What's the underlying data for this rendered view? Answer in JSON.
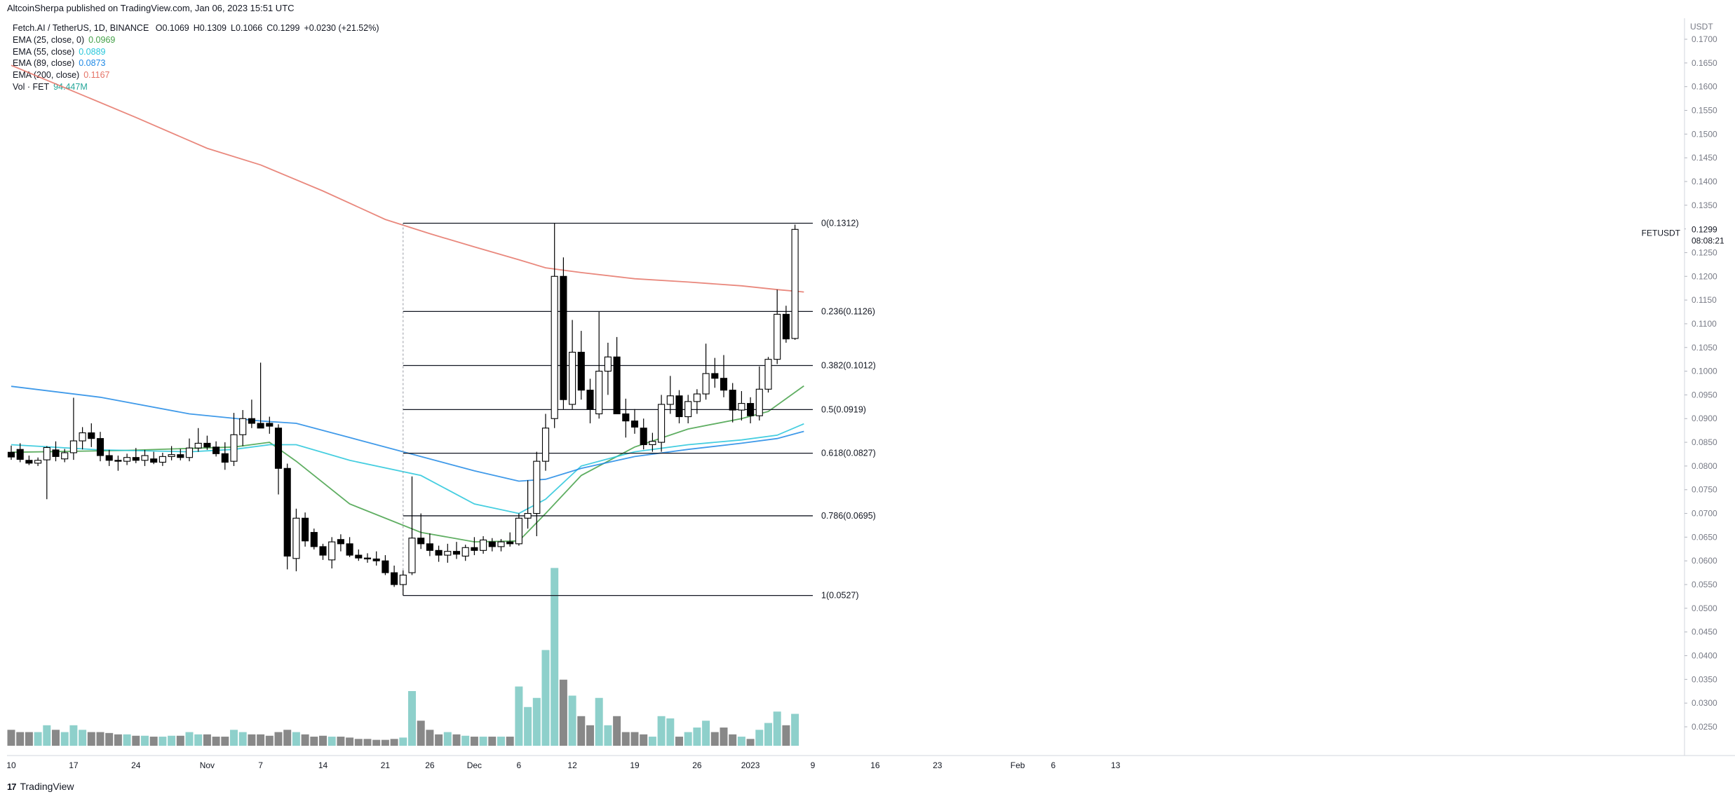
{
  "publisher": "AltcoinSherpa published on TradingView.com, Jan 06, 2023 15:51 UTC",
  "footer": {
    "logo": "TradingView"
  },
  "legend": {
    "symbol": "Fetch.AI / TetherUS, 1D, BINANCE",
    "open": "O0.1069",
    "high": "H0.1309",
    "low": "L0.1066",
    "close": "C0.1299",
    "change": "+0.0230 (+21.52%)",
    "indicators": [
      {
        "label": "EMA (25, close, 0)",
        "value": "0.0969",
        "color": "#43a047"
      },
      {
        "label": "EMA (55, close)",
        "value": "0.0889",
        "color": "#26c6da"
      },
      {
        "label": "EMA (89, close)",
        "value": "0.0873",
        "color": "#1e88e5"
      },
      {
        "label": "EMA (200, close)",
        "value": "0.1167",
        "color": "#e57366"
      },
      {
        "label": "Vol · FET",
        "value": "94.447M",
        "color": "#26a69a"
      }
    ]
  },
  "price_axis": {
    "unit": "USDT",
    "ticks": [
      0.17,
      0.165,
      0.16,
      0.155,
      0.15,
      0.145,
      0.14,
      0.135,
      0.13,
      0.125,
      0.12,
      0.115,
      0.11,
      0.105,
      0.1,
      0.095,
      0.09,
      0.085,
      0.08,
      0.075,
      0.07,
      0.065,
      0.06,
      0.055,
      0.05,
      0.045,
      0.04,
      0.035,
      0.03,
      0.025
    ],
    "tick_labels": [
      "0.1700",
      "0.1650",
      "0.1600",
      "0.1550",
      "0.1500",
      "0.1450",
      "0.1400",
      "0.1350",
      "0.1300",
      "0.1250",
      "0.1200",
      "0.1150",
      "0.1100",
      "0.1050",
      "0.1000",
      "0.0950",
      "0.0900",
      "0.0850",
      "0.0800",
      "0.0750",
      "0.0700",
      "0.0650",
      "0.0600",
      "0.0550",
      "0.0500",
      "0.0450",
      "0.0400",
      "0.0350",
      "0.0300",
      "0.0250"
    ],
    "current_price": "0.1299",
    "countdown": "08:08:21",
    "symbol_tag": "FETUSDT",
    "range": [
      0.021,
      0.1715
    ]
  },
  "time_axis": {
    "labels": [
      {
        "text": "10",
        "day": 0
      },
      {
        "text": "17",
        "day": 7
      },
      {
        "text": "24",
        "day": 14
      },
      {
        "text": "Nov",
        "day": 22
      },
      {
        "text": "7",
        "day": 28
      },
      {
        "text": "14",
        "day": 35
      },
      {
        "text": "21",
        "day": 42
      },
      {
        "text": "26",
        "day": 47
      },
      {
        "text": "Dec",
        "day": 52
      },
      {
        "text": "6",
        "day": 57
      },
      {
        "text": "12",
        "day": 63
      },
      {
        "text": "19",
        "day": 70
      },
      {
        "text": "26",
        "day": 77
      },
      {
        "text": "2023",
        "day": 83
      },
      {
        "text": "9",
        "day": 90
      },
      {
        "text": "16",
        "day": 97
      },
      {
        "text": "23",
        "day": 104
      },
      {
        "text": "Feb",
        "day": 113
      },
      {
        "text": "6",
        "day": 117
      },
      {
        "text": "13",
        "day": 124
      }
    ]
  },
  "chart_data": {
    "type": "candlestick",
    "title": "Fetch.AI / TetherUS, 1D, BINANCE",
    "ylim": [
      0.021,
      0.1715
    ],
    "candles": [
      {
        "o": 0.0829,
        "h": 0.0843,
        "l": 0.0813,
        "c": 0.0819
      },
      {
        "o": 0.0835,
        "h": 0.0848,
        "l": 0.0808,
        "c": 0.0814
      },
      {
        "o": 0.0812,
        "h": 0.0822,
        "l": 0.0802,
        "c": 0.0806
      },
      {
        "o": 0.0806,
        "h": 0.0818,
        "l": 0.08,
        "c": 0.0812
      },
      {
        "o": 0.0813,
        "h": 0.0842,
        "l": 0.073,
        "c": 0.0839
      },
      {
        "o": 0.0834,
        "h": 0.0852,
        "l": 0.081,
        "c": 0.082
      },
      {
        "o": 0.0815,
        "h": 0.0836,
        "l": 0.0808,
        "c": 0.0828
      },
      {
        "o": 0.0828,
        "h": 0.0944,
        "l": 0.0813,
        "c": 0.0853
      },
      {
        "o": 0.0853,
        "h": 0.0882,
        "l": 0.0835,
        "c": 0.087
      },
      {
        "o": 0.087,
        "h": 0.089,
        "l": 0.084,
        "c": 0.0858
      },
      {
        "o": 0.0858,
        "h": 0.0872,
        "l": 0.081,
        "c": 0.0822
      },
      {
        "o": 0.0822,
        "h": 0.0834,
        "l": 0.08,
        "c": 0.0812
      },
      {
        "o": 0.0812,
        "h": 0.0822,
        "l": 0.079,
        "c": 0.081
      },
      {
        "o": 0.081,
        "h": 0.0826,
        "l": 0.0802,
        "c": 0.0818
      },
      {
        "o": 0.0818,
        "h": 0.0838,
        "l": 0.0806,
        "c": 0.0812
      },
      {
        "o": 0.0812,
        "h": 0.0834,
        "l": 0.08,
        "c": 0.0822
      },
      {
        "o": 0.0815,
        "h": 0.083,
        "l": 0.0804,
        "c": 0.0808
      },
      {
        "o": 0.0808,
        "h": 0.0828,
        "l": 0.08,
        "c": 0.082
      },
      {
        "o": 0.082,
        "h": 0.0842,
        "l": 0.0812,
        "c": 0.0824
      },
      {
        "o": 0.0824,
        "h": 0.0836,
        "l": 0.0812,
        "c": 0.0818
      },
      {
        "o": 0.0818,
        "h": 0.0858,
        "l": 0.081,
        "c": 0.0838
      },
      {
        "o": 0.0838,
        "h": 0.088,
        "l": 0.083,
        "c": 0.0848
      },
      {
        "o": 0.0848,
        "h": 0.0864,
        "l": 0.0834,
        "c": 0.084
      },
      {
        "o": 0.084,
        "h": 0.0852,
        "l": 0.082,
        "c": 0.0826
      },
      {
        "o": 0.0826,
        "h": 0.085,
        "l": 0.0792,
        "c": 0.0808
      },
      {
        "o": 0.081,
        "h": 0.0912,
        "l": 0.08,
        "c": 0.0866
      },
      {
        "o": 0.0866,
        "h": 0.0918,
        "l": 0.0842,
        "c": 0.09
      },
      {
        "o": 0.09,
        "h": 0.094,
        "l": 0.088,
        "c": 0.089
      },
      {
        "o": 0.089,
        "h": 0.1018,
        "l": 0.088,
        "c": 0.088
      },
      {
        "o": 0.089,
        "h": 0.0904,
        "l": 0.0868,
        "c": 0.0884
      },
      {
        "o": 0.088,
        "h": 0.0888,
        "l": 0.074,
        "c": 0.0795
      },
      {
        "o": 0.0795,
        "h": 0.0805,
        "l": 0.0582,
        "c": 0.061
      },
      {
        "o": 0.0605,
        "h": 0.071,
        "l": 0.0578,
        "c": 0.069
      },
      {
        "o": 0.069,
        "h": 0.0702,
        "l": 0.063,
        "c": 0.0642
      },
      {
        "o": 0.066,
        "h": 0.0668,
        "l": 0.0624,
        "c": 0.063
      },
      {
        "o": 0.063,
        "h": 0.0636,
        "l": 0.0602,
        "c": 0.0612
      },
      {
        "o": 0.0602,
        "h": 0.065,
        "l": 0.0584,
        "c": 0.064
      },
      {
        "o": 0.0645,
        "h": 0.0656,
        "l": 0.062,
        "c": 0.0636
      },
      {
        "o": 0.0636,
        "h": 0.065,
        "l": 0.0608,
        "c": 0.0612
      },
      {
        "o": 0.0612,
        "h": 0.0624,
        "l": 0.06,
        "c": 0.0606
      },
      {
        "o": 0.0606,
        "h": 0.0616,
        "l": 0.0596,
        "c": 0.0604
      },
      {
        "o": 0.0604,
        "h": 0.062,
        "l": 0.059,
        "c": 0.06
      },
      {
        "o": 0.06,
        "h": 0.0612,
        "l": 0.057,
        "c": 0.0575
      },
      {
        "o": 0.0575,
        "h": 0.059,
        "l": 0.0545,
        "c": 0.055
      },
      {
        "o": 0.055,
        "h": 0.058,
        "l": 0.0527,
        "c": 0.057
      },
      {
        "o": 0.0575,
        "h": 0.0778,
        "l": 0.057,
        "c": 0.0648
      },
      {
        "o": 0.0648,
        "h": 0.07,
        "l": 0.0625,
        "c": 0.0636
      },
      {
        "o": 0.0636,
        "h": 0.0658,
        "l": 0.061,
        "c": 0.0622
      },
      {
        "o": 0.0622,
        "h": 0.0632,
        "l": 0.0598,
        "c": 0.0612
      },
      {
        "o": 0.0612,
        "h": 0.0636,
        "l": 0.0596,
        "c": 0.062
      },
      {
        "o": 0.062,
        "h": 0.064,
        "l": 0.0604,
        "c": 0.0614
      },
      {
        "o": 0.061,
        "h": 0.0634,
        "l": 0.06,
        "c": 0.0628
      },
      {
        "o": 0.0628,
        "h": 0.065,
        "l": 0.0612,
        "c": 0.0622
      },
      {
        "o": 0.0622,
        "h": 0.0652,
        "l": 0.0615,
        "c": 0.0644
      },
      {
        "o": 0.064,
        "h": 0.0648,
        "l": 0.062,
        "c": 0.063
      },
      {
        "o": 0.063,
        "h": 0.0646,
        "l": 0.062,
        "c": 0.064
      },
      {
        "o": 0.064,
        "h": 0.066,
        "l": 0.063,
        "c": 0.0636
      },
      {
        "o": 0.0636,
        "h": 0.07,
        "l": 0.0632,
        "c": 0.069
      },
      {
        "o": 0.069,
        "h": 0.077,
        "l": 0.0668,
        "c": 0.07
      },
      {
        "o": 0.07,
        "h": 0.083,
        "l": 0.0652,
        "c": 0.081
      },
      {
        "o": 0.081,
        "h": 0.091,
        "l": 0.079,
        "c": 0.088
      },
      {
        "o": 0.09,
        "h": 0.1312,
        "l": 0.088,
        "c": 0.12
      },
      {
        "o": 0.12,
        "h": 0.124,
        "l": 0.092,
        "c": 0.094
      },
      {
        "o": 0.093,
        "h": 0.1108,
        "l": 0.092,
        "c": 0.104
      },
      {
        "o": 0.104,
        "h": 0.1085,
        "l": 0.094,
        "c": 0.096
      },
      {
        "o": 0.096,
        "h": 0.0984,
        "l": 0.089,
        "c": 0.092
      },
      {
        "o": 0.091,
        "h": 0.1125,
        "l": 0.09,
        "c": 0.1
      },
      {
        "o": 0.1,
        "h": 0.106,
        "l": 0.095,
        "c": 0.103
      },
      {
        "o": 0.103,
        "h": 0.1072,
        "l": 0.0918,
        "c": 0.091
      },
      {
        "o": 0.091,
        "h": 0.0942,
        "l": 0.086,
        "c": 0.0895
      },
      {
        "o": 0.0895,
        "h": 0.092,
        "l": 0.0868,
        "c": 0.0882
      },
      {
        "o": 0.088,
        "h": 0.09,
        "l": 0.0835,
        "c": 0.0845
      },
      {
        "o": 0.0845,
        "h": 0.087,
        "l": 0.083,
        "c": 0.0852
      },
      {
        "o": 0.085,
        "h": 0.095,
        "l": 0.083,
        "c": 0.093
      },
      {
        "o": 0.093,
        "h": 0.099,
        "l": 0.091,
        "c": 0.0948
      },
      {
        "o": 0.0948,
        "h": 0.096,
        "l": 0.089,
        "c": 0.0904
      },
      {
        "o": 0.0904,
        "h": 0.095,
        "l": 0.089,
        "c": 0.0936
      },
      {
        "o": 0.0936,
        "h": 0.0962,
        "l": 0.091,
        "c": 0.0952
      },
      {
        "o": 0.0952,
        "h": 0.1058,
        "l": 0.094,
        "c": 0.0995
      },
      {
        "o": 0.0995,
        "h": 0.1028,
        "l": 0.0965,
        "c": 0.0985
      },
      {
        "o": 0.0985,
        "h": 0.1034,
        "l": 0.0945,
        "c": 0.096
      },
      {
        "o": 0.096,
        "h": 0.0975,
        "l": 0.0892,
        "c": 0.0918
      },
      {
        "o": 0.0918,
        "h": 0.0958,
        "l": 0.0896,
        "c": 0.0932
      },
      {
        "o": 0.0932,
        "h": 0.0945,
        "l": 0.089,
        "c": 0.0906
      },
      {
        "o": 0.0906,
        "h": 0.101,
        "l": 0.0896,
        "c": 0.0962
      },
      {
        "o": 0.0962,
        "h": 0.103,
        "l": 0.0955,
        "c": 0.1025
      },
      {
        "o": 0.1025,
        "h": 0.1172,
        "l": 0.1015,
        "c": 0.112
      },
      {
        "o": 0.112,
        "h": 0.1138,
        "l": 0.106,
        "c": 0.1068
      },
      {
        "o": 0.1069,
        "h": 0.1309,
        "l": 0.1066,
        "c": 0.1299
      }
    ],
    "volume": {
      "ylim": [
        0,
        0.06
      ],
      "values": [
        0.0035,
        0.003,
        0.003,
        0.003,
        0.0045,
        0.0035,
        0.003,
        0.0045,
        0.0035,
        0.003,
        0.003,
        0.0028,
        0.0025,
        0.0025,
        0.0022,
        0.0022,
        0.002,
        0.002,
        0.0022,
        0.0022,
        0.003,
        0.0025,
        0.0025,
        0.002,
        0.002,
        0.0035,
        0.003,
        0.0025,
        0.0025,
        0.0022,
        0.003,
        0.0035,
        0.003,
        0.0025,
        0.002,
        0.0022,
        0.002,
        0.002,
        0.0018,
        0.0015,
        0.0015,
        0.0013,
        0.0013,
        0.0015,
        0.0018,
        0.012,
        0.0055,
        0.0035,
        0.0025,
        0.003,
        0.0025,
        0.0022,
        0.002,
        0.002,
        0.002,
        0.002,
        0.002,
        0.013,
        0.0085,
        0.0105,
        0.021,
        0.039,
        0.0145,
        0.011,
        0.0065,
        0.0045,
        0.0105,
        0.0045,
        0.0065,
        0.003,
        0.003,
        0.0025,
        0.002,
        0.0065,
        0.006,
        0.002,
        0.003,
        0.004,
        0.0055,
        0.003,
        0.004,
        0.0025,
        0.002,
        0.0015,
        0.0035,
        0.005,
        0.0075,
        0.0045,
        0.007
      ],
      "up_color": "#8ed0cb",
      "down_color": "#888888"
    },
    "ema": [
      {
        "name": "EMA (25, close, 0)",
        "color": "#43a047",
        "points": [
          [
            0,
            0.0829
          ],
          [
            13,
            0.0833
          ],
          [
            25,
            0.084
          ],
          [
            29,
            0.085
          ],
          [
            32,
            0.081
          ],
          [
            38,
            0.072
          ],
          [
            46,
            0.066
          ],
          [
            52,
            0.064
          ],
          [
            57,
            0.0642
          ],
          [
            60,
            0.07
          ],
          [
            64,
            0.078
          ],
          [
            70,
            0.084
          ],
          [
            76,
            0.0878
          ],
          [
            82,
            0.09
          ],
          [
            85,
            0.0915
          ],
          [
            89,
            0.0969
          ]
        ]
      },
      {
        "name": "EMA (55, close)",
        "color": "#26c6da",
        "points": [
          [
            0,
            0.0845
          ],
          [
            10,
            0.0834
          ],
          [
            20,
            0.083
          ],
          [
            25,
            0.0835
          ],
          [
            29,
            0.0845
          ],
          [
            32,
            0.0845
          ],
          [
            38,
            0.0812
          ],
          [
            46,
            0.078
          ],
          [
            52,
            0.072
          ],
          [
            57,
            0.07
          ],
          [
            60,
            0.073
          ],
          [
            64,
            0.08
          ],
          [
            70,
            0.083
          ],
          [
            76,
            0.0845
          ],
          [
            82,
            0.0855
          ],
          [
            86,
            0.0865
          ],
          [
            89,
            0.0889
          ]
        ]
      },
      {
        "name": "EMA (89, close)",
        "color": "#1e88e5",
        "points": [
          [
            0,
            0.0968
          ],
          [
            10,
            0.0945
          ],
          [
            20,
            0.091
          ],
          [
            28,
            0.0895
          ],
          [
            32,
            0.089
          ],
          [
            38,
            0.086
          ],
          [
            46,
            0.082
          ],
          [
            52,
            0.079
          ],
          [
            57,
            0.0768
          ],
          [
            60,
            0.0772
          ],
          [
            64,
            0.0795
          ],
          [
            70,
            0.082
          ],
          [
            76,
            0.0835
          ],
          [
            82,
            0.0848
          ],
          [
            86,
            0.0858
          ],
          [
            89,
            0.0873
          ]
        ]
      },
      {
        "name": "EMA (200, close)",
        "color": "#e57366",
        "points": [
          [
            0,
            0.1645
          ],
          [
            7,
            0.159
          ],
          [
            14,
            0.1535
          ],
          [
            22,
            0.147
          ],
          [
            28,
            0.1435
          ],
          [
            35,
            0.138
          ],
          [
            42,
            0.132
          ],
          [
            47,
            0.129
          ],
          [
            52,
            0.1262
          ],
          [
            57,
            0.1235
          ],
          [
            60,
            0.1218
          ],
          [
            64,
            0.1208
          ],
          [
            70,
            0.1195
          ],
          [
            76,
            0.1188
          ],
          [
            82,
            0.118
          ],
          [
            86,
            0.1172
          ],
          [
            89,
            0.1167
          ]
        ]
      }
    ],
    "fibonacci": [
      {
        "label": "0(0.1312)",
        "price": 0.1312
      },
      {
        "label": "0.236(0.1126)",
        "price": 0.1126
      },
      {
        "label": "0.382(0.1012)",
        "price": 0.1012
      },
      {
        "label": "0.5(0.0919)",
        "price": 0.0919
      },
      {
        "label": "0.618(0.0827)",
        "price": 0.0827
      },
      {
        "label": "0.786(0.0695)",
        "price": 0.0695
      },
      {
        "label": "1(0.0527)",
        "price": 0.0527
      }
    ],
    "fib_start_day": 44,
    "fib_end_day": 90
  }
}
